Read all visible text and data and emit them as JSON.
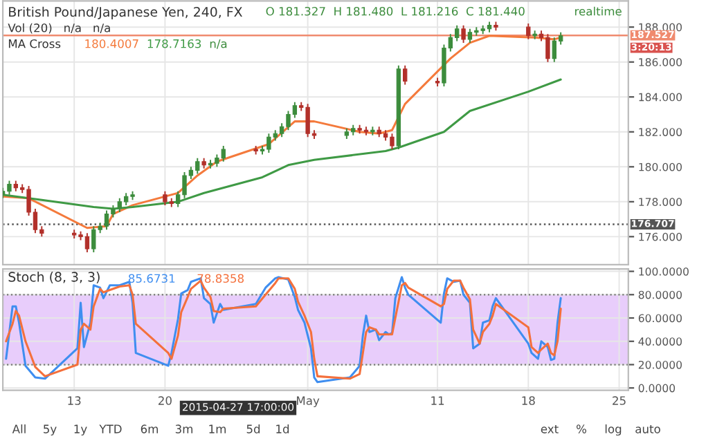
{
  "chart_data": [
    {
      "type": "candlestick",
      "title": "British Pound/Japanese Yen, 240, FX",
      "subtitle": "O 181.327  H 181.480  L 181.216  C 181.440",
      "x": [
        "2015-04-07T12:00",
        "2015-04-08T00:00",
        "2015-04-08T12:00",
        "2015-04-09T00:00",
        "2015-04-09T12:00",
        "2015-04-10T00:00",
        "2015-04-10T12:00",
        "2015-04-13T00:00",
        "2015-04-13T12:00",
        "2015-04-14T00:00",
        "2015-04-14T12:00",
        "2015-04-15T00:00",
        "2015-04-15T12:00",
        "2015-04-16T00:00",
        "2015-04-16T12:00",
        "2015-04-17T00:00",
        "2015-04-17T12:00",
        "2015-04-20T00:00",
        "2015-04-20T12:00",
        "2015-04-21T00:00",
        "2015-04-21T12:00",
        "2015-04-22T00:00",
        "2015-04-22T12:00",
        "2015-04-23T00:00",
        "2015-04-23T12:00",
        "2015-04-24T00:00",
        "2015-04-24T12:00",
        "2015-04-27T00:00",
        "2015-04-27T12:00",
        "2015-04-28T00:00",
        "2015-04-28T12:00",
        "2015-04-29T00:00",
        "2015-04-29T12:00",
        "2015-04-30T00:00",
        "2015-04-30T12:00",
        "2015-05-01T00:00",
        "2015-05-01T12:00",
        "2015-05-04T00:00",
        "2015-05-04T12:00",
        "2015-05-05T00:00",
        "2015-05-05T12:00",
        "2015-05-06T00:00",
        "2015-05-06T12:00",
        "2015-05-07T00:00",
        "2015-05-07T12:00",
        "2015-05-08T00:00",
        "2015-05-08T12:00",
        "2015-05-11T00:00",
        "2015-05-11T12:00",
        "2015-05-12T00:00",
        "2015-05-12T12:00",
        "2015-05-13T00:00",
        "2015-05-13T12:00",
        "2015-05-14T00:00",
        "2015-05-14T12:00",
        "2015-05-15T00:00",
        "2015-05-15T12:00",
        "2015-05-18T00:00",
        "2015-05-18T12:00",
        "2015-05-19T00:00",
        "2015-05-19T12:00",
        "2015-05-20T00:00",
        "2015-05-20T12:00"
      ],
      "ohlc": [
        [
          178.4,
          178.8,
          178.2,
          178.6
        ],
        [
          178.6,
          179.2,
          178.4,
          179.0
        ],
        [
          179.0,
          179.2,
          178.6,
          178.8
        ],
        [
          178.8,
          179.0,
          178.5,
          178.7
        ],
        [
          178.7,
          178.9,
          177.2,
          177.4
        ],
        [
          177.4,
          177.6,
          176.2,
          176.4
        ],
        [
          176.4,
          176.6,
          176.0,
          176.2
        ],
        [
          176.2,
          176.4,
          175.9,
          176.1
        ],
        [
          176.1,
          176.3,
          175.8,
          176.0
        ],
        [
          176.0,
          176.2,
          175.1,
          175.3
        ],
        [
          175.3,
          176.6,
          175.1,
          176.4
        ],
        [
          176.4,
          176.8,
          176.2,
          176.6
        ],
        [
          176.6,
          177.5,
          176.4,
          177.3
        ],
        [
          177.3,
          177.8,
          177.1,
          177.6
        ],
        [
          177.6,
          178.2,
          177.4,
          178.0
        ],
        [
          178.0,
          178.5,
          177.8,
          178.3
        ],
        [
          178.3,
          178.6,
          178.1,
          178.4
        ],
        [
          178.4,
          178.6,
          177.8,
          178.0
        ],
        [
          178.0,
          178.2,
          177.7,
          177.9
        ],
        [
          177.9,
          178.6,
          177.7,
          178.4
        ],
        [
          178.4,
          179.7,
          178.2,
          179.5
        ],
        [
          179.5,
          180.0,
          179.3,
          179.8
        ],
        [
          179.8,
          180.5,
          179.6,
          180.3
        ],
        [
          180.3,
          180.5,
          179.9,
          180.1
        ],
        [
          180.1,
          180.4,
          179.9,
          180.2
        ],
        [
          180.2,
          180.7,
          180.0,
          180.5
        ],
        [
          180.5,
          181.2,
          180.3,
          181.0
        ],
        [
          181.0,
          181.2,
          180.7,
          180.9
        ],
        [
          180.9,
          181.2,
          180.7,
          181.0
        ],
        [
          181.0,
          181.9,
          180.8,
          181.7
        ],
        [
          181.7,
          182.1,
          181.5,
          181.9
        ],
        [
          181.9,
          182.5,
          181.7,
          182.3
        ],
        [
          182.3,
          183.2,
          182.1,
          183.0
        ],
        [
          183.0,
          183.7,
          182.8,
          183.5
        ],
        [
          183.5,
          183.7,
          183.2,
          183.4
        ],
        [
          183.4,
          183.6,
          181.7,
          181.9
        ],
        [
          181.9,
          182.1,
          181.6,
          181.8
        ],
        [
          181.8,
          182.2,
          181.6,
          182.0
        ],
        [
          182.0,
          182.4,
          181.8,
          182.2
        ],
        [
          182.2,
          182.4,
          181.9,
          182.1
        ],
        [
          182.1,
          182.3,
          181.8,
          182.0
        ],
        [
          182.0,
          182.3,
          181.8,
          182.1
        ],
        [
          182.1,
          182.3,
          181.7,
          181.9
        ],
        [
          181.9,
          182.1,
          181.5,
          181.7
        ],
        [
          181.7,
          181.9,
          181.0,
          181.2
        ],
        [
          181.2,
          185.8,
          181.0,
          185.6
        ],
        [
          185.6,
          185.8,
          184.7,
          184.9
        ],
        [
          184.9,
          185.1,
          184.6,
          184.8
        ],
        [
          184.8,
          187.0,
          184.6,
          186.8
        ],
        [
          186.8,
          187.6,
          186.6,
          187.4
        ],
        [
          187.4,
          188.1,
          187.2,
          187.9
        ],
        [
          187.9,
          188.1,
          187.1,
          187.3
        ],
        [
          187.3,
          187.9,
          187.1,
          187.7
        ],
        [
          187.7,
          188.0,
          187.5,
          187.8
        ],
        [
          187.8,
          188.1,
          187.6,
          187.9
        ],
        [
          187.9,
          188.3,
          187.7,
          188.1
        ],
        [
          188.1,
          188.3,
          187.8,
          188.0
        ],
        [
          188.0,
          188.2,
          187.3,
          187.5
        ],
        [
          187.5,
          187.8,
          187.3,
          187.6
        ],
        [
          187.6,
          187.8,
          187.2,
          187.4
        ],
        [
          187.4,
          187.6,
          186.0,
          186.2
        ],
        [
          186.2,
          187.4,
          186.0,
          187.2
        ],
        [
          187.2,
          187.7,
          187.0,
          187.5
        ]
      ],
      "colors": [
        "#3c8c3c",
        "#3c8c3c",
        "#b2302a",
        "#b2302a",
        "#b2302a",
        "#b2302a",
        "#b2302a",
        "#b2302a",
        "#b2302a",
        "#b2302a",
        "#3c8c3c",
        "#3c8c3c",
        "#3c8c3c",
        "#3c8c3c",
        "#3c8c3c",
        "#3c8c3c",
        "#3c8c3c",
        "#b2302a",
        "#b2302a",
        "#3c8c3c",
        "#3c8c3c",
        "#3c8c3c",
        "#3c8c3c",
        "#b2302a",
        "#3c8c3c",
        "#3c8c3c",
        "#3c8c3c",
        "#b2302a",
        "#3c8c3c",
        "#3c8c3c",
        "#3c8c3c",
        "#3c8c3c",
        "#3c8c3c",
        "#3c8c3c",
        "#b2302a",
        "#b2302a",
        "#b2302a",
        "#3c8c3c",
        "#3c8c3c",
        "#b2302a",
        "#b2302a",
        "#3c8c3c",
        "#b2302a",
        "#b2302a",
        "#b2302a",
        "#3c8c3c",
        "#b2302a",
        "#b2302a",
        "#3c8c3c",
        "#3c8c3c",
        "#3c8c3c",
        "#b2302a",
        "#3c8c3c",
        "#3c8c3c",
        "#3c8c3c",
        "#3c8c3c",
        "#b2302a",
        "#b2302a",
        "#3c8c3c",
        "#b2302a",
        "#b2302a",
        "#3c8c3c",
        "#3c8c3c"
      ],
      "series": [
        {
          "type": "line",
          "name": "180.4007",
          "color": "#f47a3c",
          "x": [
            "2015-04-07T12:00",
            "2015-04-09T12:00",
            "2015-04-14T00:00",
            "2015-04-15T12:00",
            "2015-04-16T00:00",
            "2015-04-17T12:00",
            "2015-04-21T00:00",
            "2015-04-22T12:00",
            "2015-04-24T00:00",
            "2015-04-28T00:00",
            "2015-04-30T00:00",
            "2015-05-01T12:00",
            "2015-05-05T00:00",
            "2015-05-06T12:00",
            "2015-05-07T12:00",
            "2015-05-08T12:00",
            "2015-05-12T00:00",
            "2015-05-13T12:00",
            "2015-05-15T00:00",
            "2015-05-18T12:00",
            "2015-05-20T00:00",
            "2015-05-20T12:00"
          ],
          "values": [
            178.3,
            178.2,
            176.5,
            176.6,
            177.3,
            177.8,
            178.5,
            179.5,
            180.3,
            181.3,
            182.6,
            182.6,
            182.0,
            181.9,
            182.1,
            183.6,
            186.2,
            187.1,
            187.5,
            187.4,
            187.3,
            187.4
          ]
        },
        {
          "type": "line",
          "name": "178.7163",
          "color": "#3f9a45",
          "x": [
            "2015-04-07T12:00",
            "2015-04-10T12:00",
            "2015-04-14T12:00",
            "2015-04-16T00:00",
            "2015-04-17T12:00",
            "2015-04-21T00:00",
            "2015-04-23T00:00",
            "2015-04-27T12:00",
            "2015-04-29T12:00",
            "2015-05-01T12:00",
            "2015-05-07T00:00",
            "2015-05-08T00:00",
            "2015-05-11T12:00",
            "2015-05-13T12:00",
            "2015-05-18T00:00",
            "2015-05-20T12:00"
          ],
          "values": [
            178.4,
            178.1,
            177.7,
            177.6,
            177.7,
            178.0,
            178.5,
            179.4,
            180.1,
            180.4,
            180.9,
            181.1,
            182.0,
            183.2,
            184.3,
            185.0
          ]
        }
      ],
      "xlim": [
        "2015-04-07T12:00",
        "2015-05-25T17:00"
      ],
      "ylim": [
        174.4,
        189.5
      ],
      "xticks": [
        {
          "value": "2015-04-13",
          "label": null
        },
        {
          "value": "2015-04-20",
          "label": null
        },
        {
          "value": "2015-05-01",
          "label": null
        },
        {
          "value": "2015-05-11",
          "label": null
        },
        {
          "value": "2015-05-18",
          "label": null
        },
        {
          "value": "2015-05-25",
          "label": null
        }
      ],
      "yticks": [
        {
          "value": 176,
          "label": "176.000"
        },
        {
          "value": 178,
          "label": "178.000"
        },
        {
          "value": 180,
          "label": "180.000"
        },
        {
          "value": 182,
          "label": "182.000"
        },
        {
          "value": 184,
          "label": "184.000"
        },
        {
          "value": 186,
          "label": "186.000"
        },
        {
          "value": 188,
          "label": "188.000"
        }
      ],
      "ref_lines": [
        {
          "axis": "y",
          "value": 187.527,
          "label": "187.527",
          "color": "#f08a6e",
          "line_style": "solid"
        },
        {
          "axis": "y",
          "value": 176.707,
          "label": "176.707",
          "color": "#555555",
          "line_style": "dotted"
        }
      ],
      "annotations": [
        "Vol (20)   n/a   n/a",
        "MA Cross",
        "n/a",
        "realtime",
        "3:20:13"
      ],
      "grid": true,
      "legend": false,
      "tick_labels": "y"
    },
    {
      "type": "line",
      "title": "Stoch (8, 3, 3)",
      "x": [
        "2015-04-07T18:00",
        "2015-04-08T06:00",
        "2015-04-08T12:00",
        "2015-04-08T18:00",
        "2015-04-09T06:00",
        "2015-04-10T00:00",
        "2015-04-10T18:00",
        "2015-04-13T06:00",
        "2015-04-13T12:00",
        "2015-04-13T18:00",
        "2015-04-14T06:00",
        "2015-04-14T12:00",
        "2015-04-15T00:00",
        "2015-04-15T06:00",
        "2015-04-15T18:00",
        "2015-04-16T12:00",
        "2015-04-17T06:00",
        "2015-04-17T12:00",
        "2015-04-17T18:00",
        "2015-04-20T06:00",
        "2015-04-20T12:00",
        "2015-04-21T00:00",
        "2015-04-21T06:00",
        "2015-04-21T18:00",
        "2015-04-22T00:00",
        "2015-04-22T18:00",
        "2015-04-23T00:00",
        "2015-04-23T12:00",
        "2015-04-23T18:00",
        "2015-04-24T06:00",
        "2015-04-24T12:00",
        "2015-04-27T00:00",
        "2015-04-27T18:00",
        "2015-04-28T12:00",
        "2015-04-28T18:00",
        "2015-04-29T12:00",
        "2015-04-30T00:00",
        "2015-04-30T06:00",
        "2015-04-30T18:00",
        "2015-05-01T06:00",
        "2015-05-01T12:00",
        "2015-05-01T18:00",
        "2015-05-04T06:00",
        "2015-05-05T00:00",
        "2015-05-05T06:00",
        "2015-05-05T12:00",
        "2015-05-05T18:00",
        "2015-05-06T06:00",
        "2015-05-06T12:00",
        "2015-05-07T00:00",
        "2015-05-07T06:00",
        "2015-05-07T12:00",
        "2015-05-07T18:00",
        "2015-05-08T06:00",
        "2015-05-08T12:00",
        "2015-05-08T18:00",
        "2015-05-11T06:00",
        "2015-05-11T12:00",
        "2015-05-11T18:00",
        "2015-05-12T06:00",
        "2015-05-12T18:00",
        "2015-05-13T00:00",
        "2015-05-13T12:00",
        "2015-05-13T18:00",
        "2015-05-14T06:00",
        "2015-05-14T12:00",
        "2015-05-15T00:00",
        "2015-05-15T06:00",
        "2015-05-15T12:00",
        "2015-05-18T00:00",
        "2015-05-18T06:00",
        "2015-05-18T18:00",
        "2015-05-19T00:00",
        "2015-05-19T12:00",
        "2015-05-19T18:00",
        "2015-05-20T00:00",
        "2015-05-20T06:00",
        "2015-05-20T12:00"
      ],
      "series": [
        {
          "name": "85.6731",
          "color": "#3f8ef0",
          "values": [
            25,
            70,
            70,
            56,
            19,
            9,
            8,
            34,
            73,
            35,
            56,
            88,
            86,
            77,
            88,
            88,
            91,
            73,
            30,
            19,
            30,
            59,
            81,
            84,
            91,
            94,
            77,
            72,
            56,
            72,
            67,
            72,
            86,
            94,
            95,
            93,
            78,
            67,
            56,
            34,
            9,
            5,
            9,
            19,
            45,
            62,
            48,
            50,
            41,
            48,
            46,
            47,
            77,
            95,
            86,
            80,
            56,
            81,
            94,
            91,
            92,
            80,
            73,
            34,
            38,
            56,
            58,
            70,
            77,
            38,
            30,
            25,
            40,
            35,
            24,
            25,
            56,
            77
          ]
        },
        {
          "name": "78.8358",
          "color": "#f4703c",
          "values": [
            40,
            55,
            66,
            62,
            40,
            18,
            10,
            20,
            50,
            55,
            50,
            70,
            85,
            82,
            84,
            87,
            88,
            80,
            55,
            30,
            25,
            45,
            65,
            78,
            85,
            92,
            86,
            78,
            66,
            65,
            68,
            70,
            80,
            90,
            94,
            94,
            85,
            74,
            62,
            48,
            25,
            10,
            8,
            12,
            30,
            48,
            52,
            50,
            46,
            46,
            46,
            46,
            60,
            88,
            90,
            86,
            70,
            72,
            85,
            92,
            92,
            86,
            76,
            50,
            38,
            48,
            55,
            62,
            72,
            52,
            35,
            30,
            33,
            38,
            30,
            28,
            40,
            68
          ]
        }
      ],
      "xlim": [
        "2015-04-07T12:00",
        "2015-05-25T17:00"
      ],
      "ylim": [
        -2,
        102
      ],
      "xticks": [
        {
          "value": "2015-04-13",
          "label": "13"
        },
        {
          "value": "2015-04-20",
          "label": "20"
        },
        {
          "value": "2015-05-01",
          "label": "May"
        },
        {
          "value": "2015-05-11",
          "label": "11"
        },
        {
          "value": "2015-05-18",
          "label": "18"
        },
        {
          "value": "2015-05-25",
          "label": "25"
        }
      ],
      "yticks": [
        {
          "value": 0,
          "label": "0.0000"
        },
        {
          "value": 20,
          "label": "20.0000"
        },
        {
          "value": 40,
          "label": "40.0000"
        },
        {
          "value": 60,
          "label": "60.0000"
        },
        {
          "value": 80,
          "label": "80.0000"
        },
        {
          "value": 100,
          "label": "100.0000"
        }
      ],
      "bands": [
        {
          "axis": "y",
          "from": 20,
          "to": 80,
          "color": "#e8cdfb"
        }
      ],
      "annotations": [
        "2015-04-27 17:00:00",
        "All",
        "5y",
        "1y",
        "YTD",
        "6m",
        "3m",
        "1m",
        "5d",
        "1d",
        "ext",
        "%",
        "log",
        "auto"
      ],
      "grid": true,
      "legend": false
    }
  ]
}
